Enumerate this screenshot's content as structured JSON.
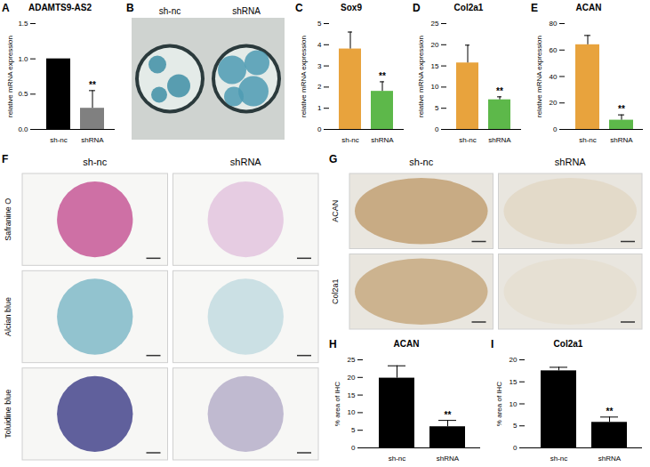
{
  "chart_data": [
    {
      "panel": "A",
      "type": "bar",
      "title": "ADAMTS9-AS2",
      "y_label": "relative mRNA expression",
      "categories": [
        "sh-nc",
        "shRNA"
      ],
      "values": [
        1.0,
        0.3
      ],
      "errors": [
        0,
        0.25
      ],
      "annotations": [
        null,
        "**"
      ],
      "colors": [
        "#000000",
        "#808080"
      ],
      "ylim": [
        0,
        1.5
      ],
      "yticks": [
        {
          "value": 0,
          "label": "0.0"
        },
        {
          "value": 0.5,
          "label": "0.5"
        },
        {
          "value": 1,
          "label": "1.0"
        },
        {
          "value": 1.5,
          "label": "1.5"
        }
      ]
    },
    {
      "panel": "C",
      "type": "bar",
      "title": "Sox9",
      "y_label": "relative mRNA expression",
      "categories": [
        "sh-nc",
        "shRNA"
      ],
      "values": [
        3.8,
        1.8
      ],
      "errors": [
        0.8,
        0.45
      ],
      "annotations": [
        null,
        "**"
      ],
      "colors": [
        "#e8a33d",
        "#5db84a"
      ],
      "ylim": [
        0,
        5
      ],
      "yticks": [
        0,
        1,
        2,
        3,
        4,
        5
      ]
    },
    {
      "panel": "D",
      "type": "bar",
      "title": "Col2a1",
      "y_label": "relative mRNA expression",
      "categories": [
        "sh-nc",
        "shRNA"
      ],
      "values": [
        15.7,
        7.0
      ],
      "errors": [
        4.2,
        0.7
      ],
      "annotations": [
        null,
        "**"
      ],
      "colors": [
        "#e8a33d",
        "#5db84a"
      ],
      "ylim": [
        0,
        25
      ],
      "yticks": [
        0,
        5,
        10,
        15,
        20,
        25
      ]
    },
    {
      "panel": "E",
      "type": "bar",
      "title": "ACAN",
      "y_label": "relative mRNA expression",
      "categories": [
        "sh-nc",
        "shRNA"
      ],
      "values": [
        64,
        7
      ],
      "errors": [
        7,
        4
      ],
      "annotations": [
        null,
        "**"
      ],
      "colors": [
        "#e8a33d",
        "#5db84a"
      ],
      "ylim": [
        0,
        80
      ],
      "yticks": [
        0,
        20,
        40,
        60,
        80
      ]
    },
    {
      "panel": "H",
      "type": "bar",
      "title": "ACAN",
      "y_label": "% area of IHC",
      "categories": [
        "sh-nc",
        "shRNA"
      ],
      "values": [
        19.8,
        6.0
      ],
      "errors": [
        3.5,
        1.8
      ],
      "annotations": [
        null,
        "**"
      ],
      "colors": [
        "#000000",
        "#000000"
      ],
      "ylim": [
        0,
        25
      ],
      "yticks": [
        0,
        5,
        10,
        15,
        20,
        25
      ]
    },
    {
      "panel": "I",
      "type": "bar",
      "title": "Col2a1",
      "y_label": "% area of IHC",
      "categories": [
        "sh-nc",
        "shRNA"
      ],
      "values": [
        17.5,
        5.8
      ],
      "errors": [
        0.8,
        1.2
      ],
      "annotations": [
        null,
        "**"
      ],
      "colors": [
        "#000000",
        "#000000"
      ],
      "ylim": [
        0,
        20
      ],
      "yticks": [
        0,
        5,
        10,
        15,
        20
      ]
    }
  ],
  "image_panels": [
    {
      "panel": "B",
      "columns": [
        "sh-nc",
        "shRNA"
      ]
    },
    {
      "panel": "F",
      "columns": [
        "sh-nc",
        "shRNA"
      ],
      "rows": [
        "Safranine O",
        "Alcian blue",
        "Toluidine blue"
      ]
    },
    {
      "panel": "G",
      "columns": [
        "sh-nc",
        "shRNA"
      ],
      "rows": [
        "ACAN",
        "Col2a1"
      ]
    }
  ]
}
